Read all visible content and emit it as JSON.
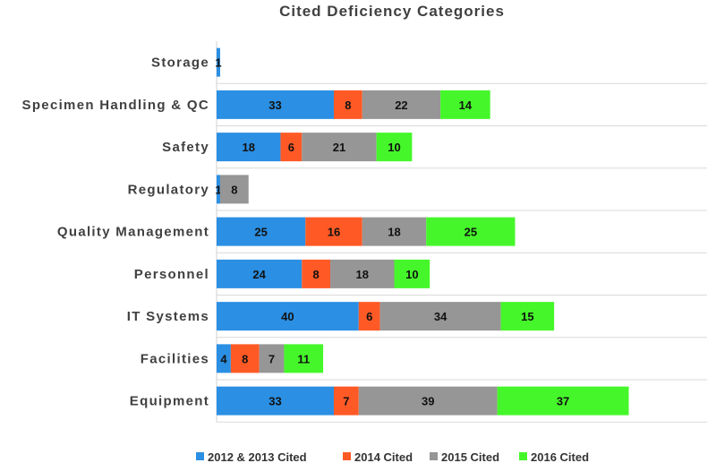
{
  "chart_data": {
    "type": "bar",
    "orientation": "horizontal",
    "stacked": true,
    "title": "Cited Deficiency Categories",
    "xlabel": "",
    "ylabel": "",
    "grid": true,
    "legend_position": "bottom",
    "categories": [
      "Storage",
      "Specimen Handling & QC",
      "Safety",
      "Regulatory",
      "Quality Management",
      "Personnel",
      "IT Systems",
      "Facilities",
      "Equipment"
    ],
    "series": [
      {
        "name": "2012 & 2013 Cited",
        "color": "#2B8FE3",
        "values": [
          1,
          33,
          18,
          1,
          25,
          24,
          40,
          4,
          33
        ]
      },
      {
        "name": "2014 Cited",
        "color": "#FF5A26",
        "values": [
          null,
          8,
          6,
          null,
          16,
          8,
          6,
          8,
          7
        ]
      },
      {
        "name": "2015 Cited",
        "color": "#969696",
        "values": [
          null,
          22,
          21,
          8,
          18,
          18,
          34,
          7,
          39
        ]
      },
      {
        "name": "2016 Cited",
        "color": "#45F72A",
        "values": [
          null,
          14,
          10,
          null,
          25,
          10,
          15,
          11,
          37
        ]
      }
    ]
  }
}
